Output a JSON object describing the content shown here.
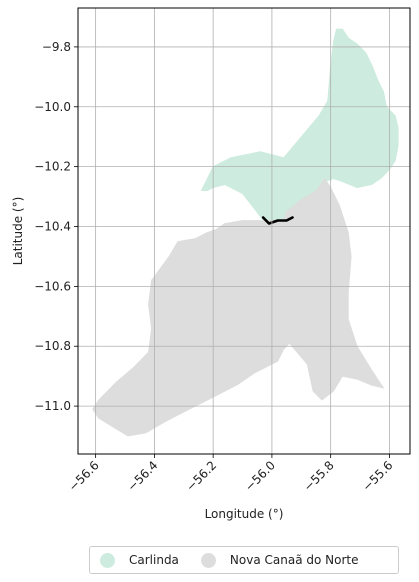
{
  "chart_data": {
    "type": "map",
    "xlabel": "Longitude (°)",
    "ylabel": "Latitude (°)",
    "xlim": [
      -56.66,
      -55.53
    ],
    "ylim": [
      -11.16,
      -9.67
    ],
    "xticks": [
      -56.6,
      -56.4,
      -56.2,
      -56.0,
      -55.8,
      -55.6
    ],
    "xtick_labels": [
      "−56.6",
      "−56.4",
      "−56.2",
      "−56.0",
      "−55.8",
      "−55.6"
    ],
    "yticks": [
      -9.8,
      -10.0,
      -10.2,
      -10.4,
      -10.6,
      -10.8,
      -11.0
    ],
    "ytick_labels": [
      "−9.8",
      "−10.0",
      "−10.2",
      "−10.4",
      "−10.6",
      "−10.8",
      "−11.0"
    ],
    "grid": true,
    "legend_placement": "bottom",
    "regions": [
      {
        "name": "Carlinda",
        "color": "#cdebde",
        "boundary": [
          [
            -56.24,
            -10.28
          ],
          [
            -56.2,
            -10.2
          ],
          [
            -56.14,
            -10.17
          ],
          [
            -56.04,
            -10.15
          ],
          [
            -55.96,
            -10.17
          ],
          [
            -55.9,
            -10.1
          ],
          [
            -55.84,
            -10.03
          ],
          [
            -55.81,
            -9.98
          ],
          [
            -55.8,
            -9.86
          ],
          [
            -55.79,
            -9.78
          ],
          [
            -55.78,
            -9.74
          ],
          [
            -55.76,
            -9.74
          ],
          [
            -55.74,
            -9.77
          ],
          [
            -55.71,
            -9.79
          ],
          [
            -55.68,
            -9.82
          ],
          [
            -55.66,
            -9.86
          ],
          [
            -55.64,
            -9.91
          ],
          [
            -55.62,
            -9.95
          ],
          [
            -55.61,
            -10.0
          ],
          [
            -55.58,
            -10.03
          ],
          [
            -55.57,
            -10.07
          ],
          [
            -55.57,
            -10.13
          ],
          [
            -55.58,
            -10.18
          ],
          [
            -55.6,
            -10.21
          ],
          [
            -55.63,
            -10.24
          ],
          [
            -55.66,
            -10.26
          ],
          [
            -55.71,
            -10.27
          ],
          [
            -55.76,
            -10.25
          ],
          [
            -55.79,
            -10.24
          ],
          [
            -55.82,
            -10.25
          ],
          [
            -55.85,
            -10.28
          ],
          [
            -55.9,
            -10.31
          ],
          [
            -55.95,
            -10.35
          ],
          [
            -55.96,
            -10.38
          ],
          [
            -56.03,
            -10.38
          ],
          [
            -56.06,
            -10.34
          ],
          [
            -56.1,
            -10.29
          ],
          [
            -56.16,
            -10.26
          ],
          [
            -56.2,
            -10.27
          ],
          [
            -56.22,
            -10.28
          ]
        ]
      },
      {
        "name": "Nova Canaã do Norte",
        "color": "#dddddd",
        "boundary": [
          [
            -56.03,
            -10.38
          ],
          [
            -56.1,
            -10.38
          ],
          [
            -56.16,
            -10.39
          ],
          [
            -56.19,
            -10.41
          ],
          [
            -56.22,
            -10.42
          ],
          [
            -56.26,
            -10.44
          ],
          [
            -56.32,
            -10.45
          ],
          [
            -56.35,
            -10.5
          ],
          [
            -56.38,
            -10.54
          ],
          [
            -56.41,
            -10.58
          ],
          [
            -56.42,
            -10.66
          ],
          [
            -56.41,
            -10.74
          ],
          [
            -56.42,
            -10.82
          ],
          [
            -56.47,
            -10.87
          ],
          [
            -56.53,
            -10.92
          ],
          [
            -56.59,
            -10.98
          ],
          [
            -56.61,
            -11.01
          ],
          [
            -56.59,
            -11.04
          ],
          [
            -56.54,
            -11.07
          ],
          [
            -56.49,
            -11.1
          ],
          [
            -56.43,
            -11.09
          ],
          [
            -56.36,
            -11.05
          ],
          [
            -56.28,
            -11.01
          ],
          [
            -56.2,
            -10.97
          ],
          [
            -56.12,
            -10.93
          ],
          [
            -56.06,
            -10.89
          ],
          [
            -55.98,
            -10.85
          ],
          [
            -55.96,
            -10.81
          ],
          [
            -55.94,
            -10.79
          ],
          [
            -55.88,
            -10.86
          ],
          [
            -55.86,
            -10.95
          ],
          [
            -55.83,
            -10.98
          ],
          [
            -55.79,
            -10.95
          ],
          [
            -55.76,
            -10.9
          ],
          [
            -55.71,
            -10.91
          ],
          [
            -55.66,
            -10.93
          ],
          [
            -55.62,
            -10.94
          ],
          [
            -55.66,
            -10.88
          ],
          [
            -55.71,
            -10.8
          ],
          [
            -55.74,
            -10.71
          ],
          [
            -55.74,
            -10.62
          ],
          [
            -55.73,
            -10.5
          ],
          [
            -55.74,
            -10.42
          ],
          [
            -55.77,
            -10.33
          ],
          [
            -55.8,
            -10.27
          ],
          [
            -55.82,
            -10.24
          ],
          [
            -55.85,
            -10.28
          ],
          [
            -55.9,
            -10.31
          ],
          [
            -55.95,
            -10.35
          ],
          [
            -55.96,
            -10.38
          ]
        ]
      }
    ],
    "highlight_segment": {
      "color": "#000000",
      "points": [
        [
          -56.03,
          -10.37
        ],
        [
          -56.01,
          -10.39
        ],
        [
          -55.98,
          -10.38
        ],
        [
          -55.95,
          -10.38
        ],
        [
          -55.93,
          -10.37
        ]
      ]
    },
    "legend": [
      "Carlinda",
      "Nova Canaã do Norte"
    ]
  }
}
